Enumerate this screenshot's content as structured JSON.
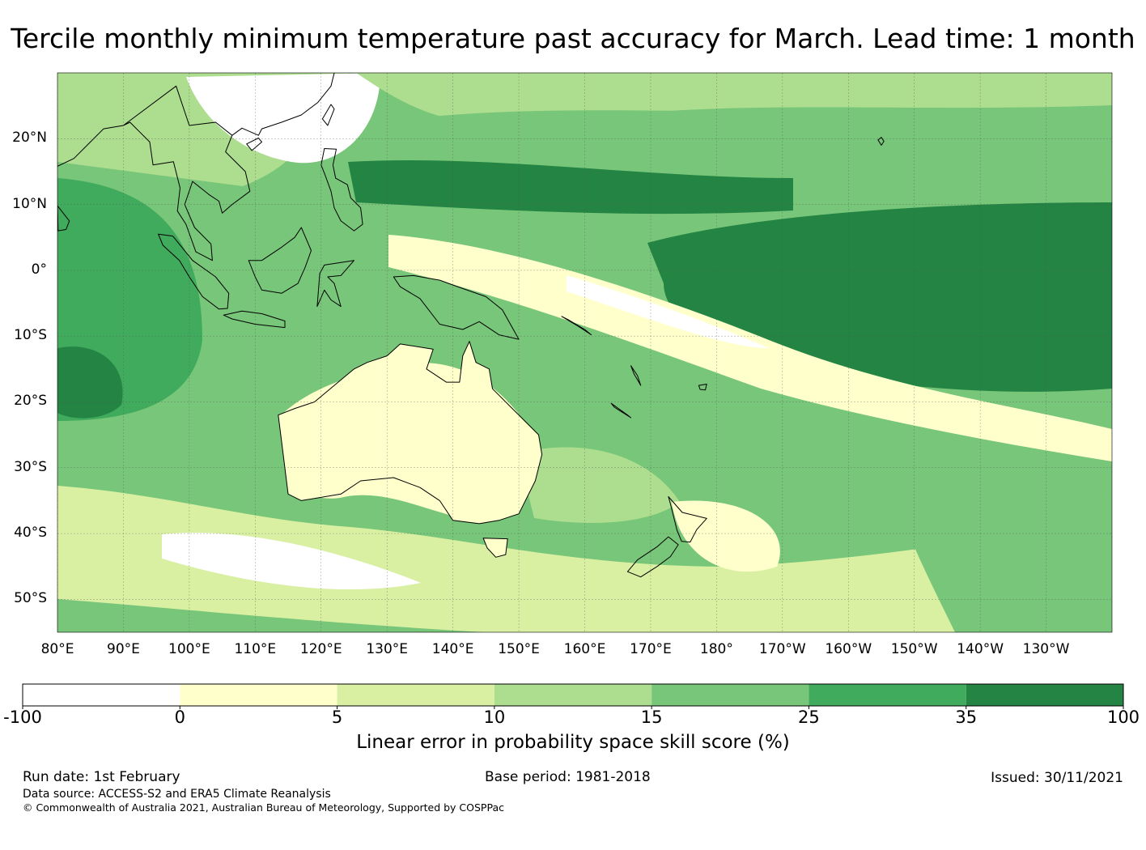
{
  "title": "Tercile monthly minimum temperature past accuracy for March. Lead time: 1 month",
  "map": {
    "lat_labels": [
      "20°N",
      "10°N",
      "0°",
      "10°S",
      "20°S",
      "30°S",
      "40°S",
      "50°S"
    ],
    "lon_labels": [
      "80°E",
      "90°E",
      "100°E",
      "110°E",
      "120°E",
      "130°E",
      "140°E",
      "150°E",
      "160°E",
      "170°E",
      "180°",
      "170°W",
      "160°W",
      "150°W",
      "140°W",
      "130°W"
    ],
    "land_masses": [
      "australia",
      "new-guinea",
      "new-zealand",
      "tasmania",
      "borneo",
      "sumatra",
      "java",
      "philippines",
      "sulawesi",
      "indochina",
      "taiwan",
      "hawaii",
      "fiji",
      "new-caledonia"
    ]
  },
  "colorbar": {
    "tick_labels": [
      "-100",
      "0",
      "5",
      "10",
      "15",
      "25",
      "35",
      "100"
    ],
    "colors": [
      "#ffffff",
      "#ffffcc",
      "#d9f0a3",
      "#addd8e",
      "#78c679",
      "#41ab5d",
      "#238443"
    ],
    "label": "Linear error in probability space skill score (%)"
  },
  "chart_data": {
    "type": "heatmap",
    "title": "Tercile monthly minimum temperature past accuracy for March. Lead time: 1 month",
    "variable": "Linear error in probability space skill score (%)",
    "bins": [
      {
        "range": [
          -100,
          0
        ],
        "color": "#ffffff"
      },
      {
        "range": [
          0,
          5
        ],
        "color": "#ffffcc"
      },
      {
        "range": [
          5,
          10
        ],
        "color": "#d9f0a3"
      },
      {
        "range": [
          10,
          15
        ],
        "color": "#addd8e"
      },
      {
        "range": [
          15,
          25
        ],
        "color": "#78c679"
      },
      {
        "range": [
          25,
          35
        ],
        "color": "#41ab5d"
      },
      {
        "range": [
          35,
          100
        ],
        "color": "#238443"
      }
    ],
    "lon_range": [
      80,
      240
    ],
    "lat_range": [
      -55,
      30
    ],
    "regions": [
      {
        "name": "central-equatorial-pacific",
        "score_bin": "35 to 100"
      },
      {
        "name": "south-pacific-convergence-zone",
        "score_bin": "0 to 5"
      },
      {
        "name": "australia-interior",
        "score_bin": "0 to 5"
      },
      {
        "name": "south-china-sea",
        "score_bin": "-100 to 0"
      },
      {
        "name": "eastern-indian-ocean",
        "score_bin": "25 to 35"
      },
      {
        "name": "southern-ocean",
        "score_bin": "5 to 15"
      }
    ]
  },
  "footer": {
    "run_date": "Run date: 1st February",
    "base_period": "Base period: 1981-2018",
    "issued": "Issued: 30/11/2021",
    "data_source": "Data source: ACCESS-S2 and ERA5 Climate Reanalysis",
    "copyright": "© Commonwealth of Australia 2021, Australian Bureau of Meteorology, Supported by COSPPac"
  }
}
